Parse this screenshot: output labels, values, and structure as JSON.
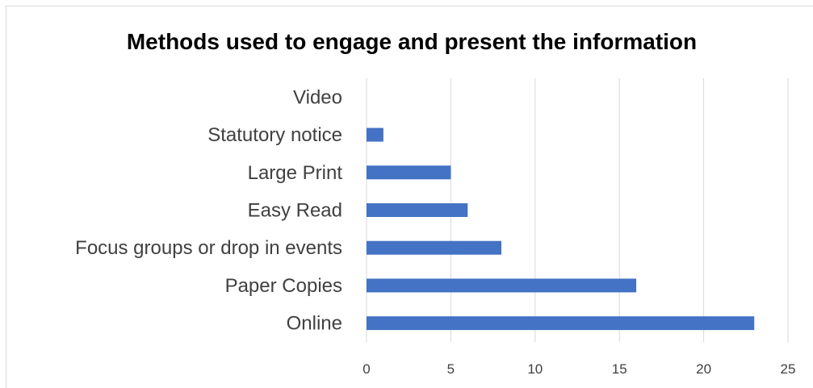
{
  "chart_data": {
    "type": "bar",
    "orientation": "horizontal",
    "title": "Methods used to engage and present the information",
    "categories": [
      "Video",
      "Statutory notice",
      "Large Print",
      "Easy Read",
      "Focus groups or drop in events",
      "Paper Copies",
      "Online"
    ],
    "values": [
      0,
      1,
      5,
      6,
      8,
      16,
      23
    ],
    "xlim": [
      0,
      25
    ],
    "xticks": [
      0,
      5,
      10,
      15,
      20,
      25
    ],
    "grid": true,
    "legend": "none",
    "bar_color": "#4472c4",
    "grid_color": "#d9d9d9"
  }
}
